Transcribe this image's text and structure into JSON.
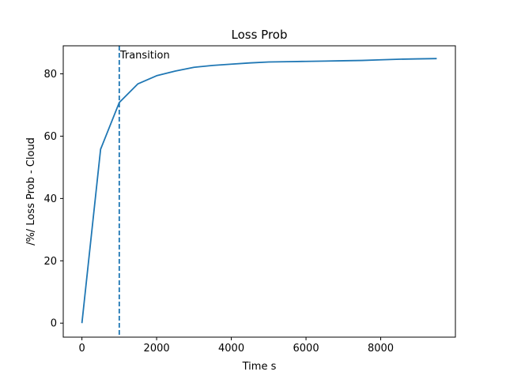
{
  "chart_data": {
    "type": "line",
    "title": "Loss Prob",
    "xlabel": "Time s",
    "ylabel": "/%/ Loss Prob - Cloud",
    "xlim": [
      -500,
      10000
    ],
    "ylim": [
      -4.5,
      89
    ],
    "x_ticks": [
      0,
      2000,
      4000,
      6000,
      8000
    ],
    "y_ticks": [
      0,
      20,
      40,
      60,
      80
    ],
    "grid": false,
    "series": [
      {
        "color": "#1f77b4",
        "x": [
          0,
          500,
          1000,
          1500,
          2000,
          2500,
          3000,
          3500,
          4000,
          4500,
          5000,
          5500,
          6000,
          6500,
          7000,
          7500,
          8000,
          8500,
          9000,
          9500
        ],
        "y": [
          0,
          55.8,
          70.8,
          76.8,
          79.4,
          80.9,
          82.1,
          82.7,
          83.1,
          83.5,
          83.8,
          83.9,
          84.0,
          84.1,
          84.2,
          84.3,
          84.5,
          84.7,
          84.8,
          84.9
        ]
      }
    ],
    "annotations": [
      {
        "type": "vline",
        "x": 1000,
        "style": "dashed",
        "color": "#1f77b4",
        "label": "Transition"
      }
    ]
  }
}
